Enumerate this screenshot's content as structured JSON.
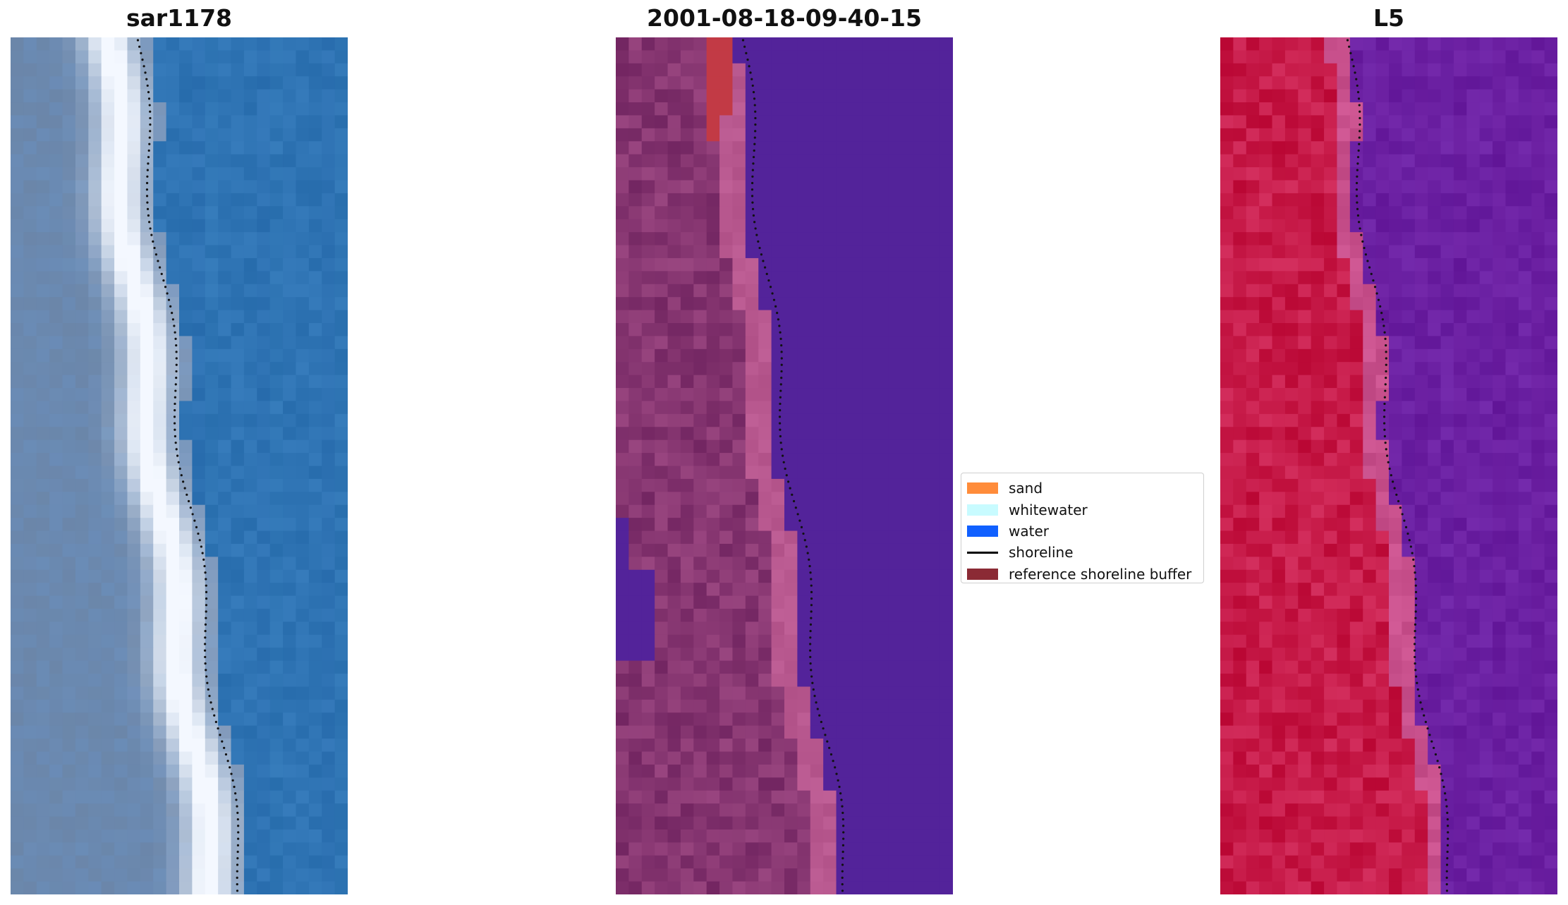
{
  "panels": {
    "rgb": {
      "title": "sar1178"
    },
    "classified": {
      "title": "2001-08-18-09-40-15"
    },
    "nir": {
      "title": "L5"
    }
  },
  "legend": {
    "items": [
      {
        "label": "sand",
        "kind": "patch",
        "color": "#ff8c3a"
      },
      {
        "label": "whitewater",
        "kind": "patch",
        "color": "#c8fbff"
      },
      {
        "label": "water",
        "kind": "patch",
        "color": "#1060ff"
      },
      {
        "label": "shoreline",
        "kind": "line",
        "color": "#000000"
      },
      {
        "label": "reference shoreline buffer",
        "kind": "patch",
        "color": "#8b2a35"
      }
    ]
  },
  "colors": {
    "water_rgb": "#2f75b4",
    "beach_rgb": "#7a95b8",
    "whitewater_rgb": "#f4f8ff",
    "land_classified": "#7b2e6a",
    "beach_classified": "#b8588f",
    "water_classified": "#53239a",
    "buffer_classified": "#c23a45",
    "land_nir": "#c5123f",
    "water_nir": "#6a1ea0"
  }
}
